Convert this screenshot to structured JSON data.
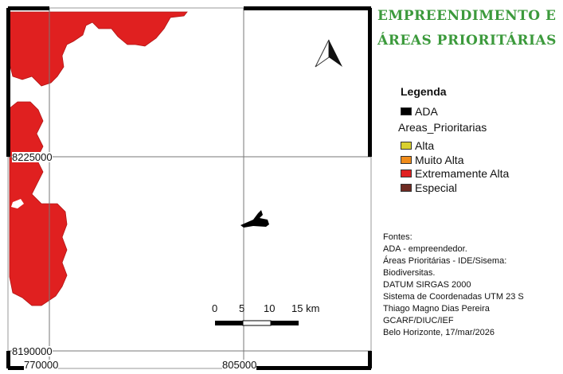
{
  "title": {
    "line1": "EMPREENDIMENTO E",
    "line2": "ÁREAS PRIORITÁRIAS"
  },
  "legend": {
    "title": "Legenda",
    "ada_label": "ADA",
    "group_label": "Areas_Prioritarias",
    "items": [
      {
        "label": "Alta",
        "color": "#d8d030"
      },
      {
        "label": "Muito Alta",
        "color": "#f08c1a"
      },
      {
        "label": "Extremamente Alta",
        "color": "#e02020"
      },
      {
        "label": "Especial",
        "color": "#6e2a22"
      }
    ]
  },
  "sources": [
    "Fontes:",
    "ADA - empreendedor.",
    "Áreas Prioritárias - IDE/Sisema:",
    "Biodiversitas.",
    "DATUM SIRGAS 2000",
    "Sistema de Coordenadas UTM 23 S",
    "Thiago Magno Dias Pereira",
    "GCARF/DIUC/IEF",
    "Belo Horizonte, 17/mar/2026"
  ],
  "grid": {
    "y_labels": [
      "8225000",
      "8190000"
    ],
    "x_labels": [
      "770000",
      "805000"
    ]
  },
  "scale_bar": {
    "labels": [
      "0",
      "5",
      "10",
      "15 km"
    ]
  },
  "colors": {
    "priority_area": "#e02020",
    "title": "#3c9a3c"
  },
  "icons": {
    "north": "north-arrow-icon"
  }
}
